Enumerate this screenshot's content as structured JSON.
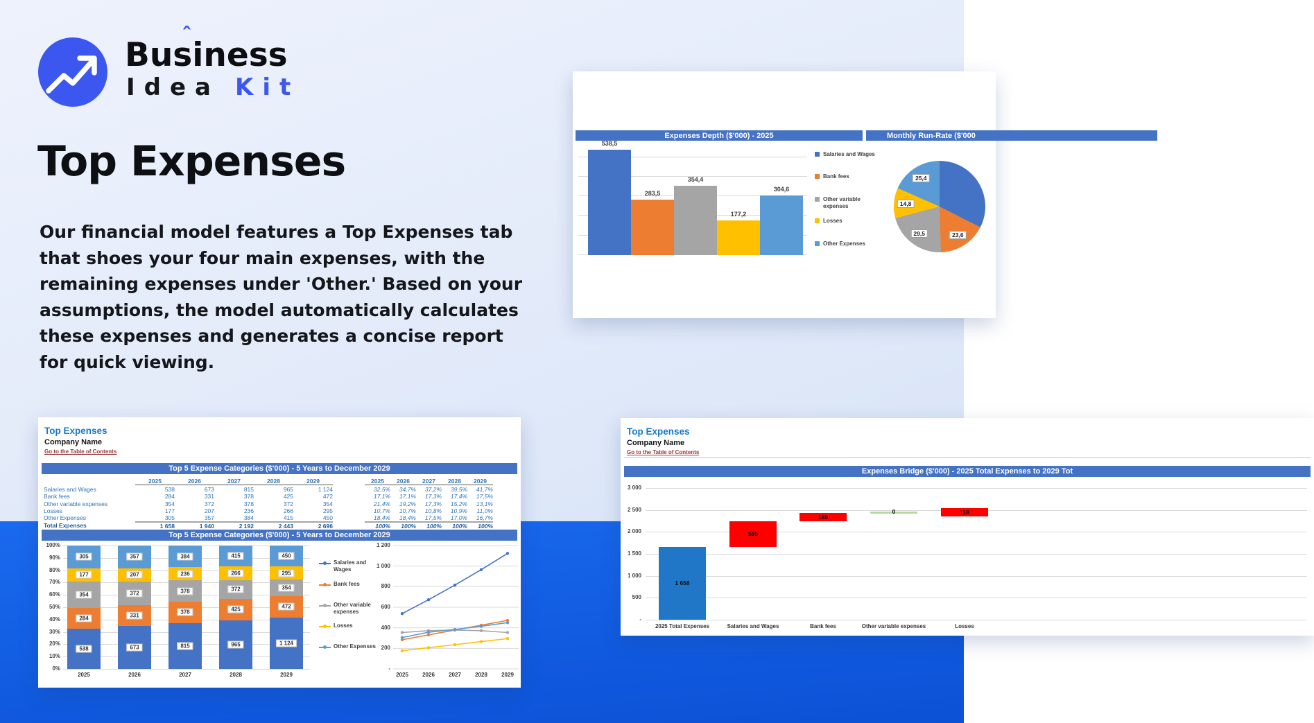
{
  "brand": {
    "word1": "Business",
    "accent": "ˆ",
    "word2": "Idea",
    "word3": "Kit"
  },
  "hero": {
    "title": "Top Expenses",
    "description": "Our financial model features a Top Expenses tab that shoes your four main expenses, with the remaining expenses under 'Other.' Based on your assumptions, the model automatically calculates these expenses and generates a concise report for quick viewing."
  },
  "panels": {
    "depth": {
      "header_left": "Expenses Depth ($'000) - 2025",
      "header_right": "Monthly Run-Rate ($'000"
    },
    "sheet1": {
      "title": "Top Expenses",
      "company": "Company Name",
      "toc_link": "Go to the Table of Contents",
      "table_title": "Top 5 Expense Categories ($'000) - 5 Years to December 2029",
      "chart_title": "Top 5 Expense Categories ($'000) - 5 Years to December 2029"
    },
    "sheet2": {
      "title": "Top Expenses",
      "company": "Company Name",
      "toc_link": "Go to the Table of Contents",
      "chart_title": "Expenses Bridge ($'000) - 2025 Total Expenses to 2029 Tot"
    }
  },
  "table": {
    "years": [
      "2025",
      "2026",
      "2027",
      "2028",
      "2029"
    ],
    "rows": [
      {
        "label": "Salaries and Wages",
        "values": [
          "538",
          "673",
          "815",
          "965",
          "1 124"
        ],
        "pcts": [
          "32,5%",
          "34,7%",
          "37,2%",
          "39,5%",
          "41,7%"
        ]
      },
      {
        "label": "Bank fees",
        "values": [
          "284",
          "331",
          "378",
          "425",
          "472"
        ],
        "pcts": [
          "17,1%",
          "17,1%",
          "17,3%",
          "17,4%",
          "17,5%"
        ]
      },
      {
        "label": "Other variable expenses",
        "values": [
          "354",
          "372",
          "378",
          "372",
          "354"
        ],
        "pcts": [
          "21,4%",
          "19,2%",
          "17,3%",
          "15,2%",
          "13,1%"
        ]
      },
      {
        "label": "Losses",
        "values": [
          "177",
          "207",
          "236",
          "266",
          "295"
        ],
        "pcts": [
          "10,7%",
          "10,7%",
          "10,8%",
          "10,9%",
          "11,0%"
        ]
      },
      {
        "label": "Other Expenses",
        "values": [
          "305",
          "357",
          "384",
          "415",
          "450"
        ],
        "pcts": [
          "18,4%",
          "18,4%",
          "17,5%",
          "17,0%",
          "16,7%"
        ]
      }
    ],
    "total": {
      "label": "Total Expenses",
      "values": [
        "1 658",
        "1 940",
        "2 192",
        "2 443",
        "2 696"
      ],
      "pcts": [
        "100%",
        "100%",
        "100%",
        "100%",
        "100%"
      ]
    }
  },
  "chart_data": [
    {
      "id": "depth",
      "type": "bar",
      "title": "Expenses Depth ($'000) - 2025",
      "categories": [
        "Salaries and Wages",
        "Bank fees",
        "Other variable expenses",
        "Losses",
        "Other Expenses"
      ],
      "values": [
        538.5,
        283.5,
        354.4,
        177.2,
        304.6
      ],
      "value_labels": [
        "538,5",
        "283,5",
        "354,4",
        "177,2",
        "304,6"
      ],
      "colors": [
        "#4472C4",
        "#ED7D31",
        "#A5A5A5",
        "#FFC000",
        "#5B9BD5"
      ],
      "ylim": [
        0,
        560
      ],
      "gridline_step": 100,
      "grid": true,
      "legend": [
        "Salaries and Wages",
        "Bank fees",
        "Other variable expenses",
        "Losses",
        "Other Expenses"
      ],
      "legend_position": "right"
    },
    {
      "id": "runrate",
      "type": "pie",
      "title": "Monthly Run-Rate ($'000",
      "slices": [
        {
          "name": "Salaries and Wages",
          "value": 44.8,
          "label": "",
          "color": "#4472C4"
        },
        {
          "name": "Bank fees",
          "value": 23.6,
          "label": "23,6",
          "color": "#ED7D31"
        },
        {
          "name": "Other variable expenses",
          "value": 29.5,
          "label": "29,5",
          "color": "#A5A5A5"
        },
        {
          "name": "Losses",
          "value": 14.8,
          "label": "14,8",
          "color": "#FFC000"
        },
        {
          "name": "Other Expenses",
          "value": 25.4,
          "label": "25,4",
          "color": "#5B9BD5"
        }
      ]
    },
    {
      "id": "stacked",
      "type": "stacked-bar",
      "title": "Top 5 Expense Categories ($'000) - 5 Years to December 2029",
      "categories": [
        "2025",
        "2026",
        "2027",
        "2028",
        "2029"
      ],
      "series": [
        {
          "name": "Salaries and Wages",
          "color": "#4472C4",
          "values": [
            538,
            673,
            815,
            965,
            1124
          ],
          "labels": [
            "538",
            "673",
            "815",
            "965",
            "1 124"
          ]
        },
        {
          "name": "Bank fees",
          "color": "#ED7D31",
          "values": [
            284,
            331,
            378,
            425,
            472
          ],
          "labels": [
            "284",
            "331",
            "378",
            "425",
            "472"
          ]
        },
        {
          "name": "Other variable expenses",
          "color": "#A5A5A5",
          "values": [
            354,
            372,
            378,
            372,
            354
          ],
          "labels": [
            "354",
            "372",
            "378",
            "372",
            "354"
          ]
        },
        {
          "name": "Losses",
          "color": "#FFC000",
          "values": [
            177,
            207,
            236,
            266,
            295
          ],
          "labels": [
            "177",
            "207",
            "236",
            "266",
            "295"
          ]
        },
        {
          "name": "Other Expenses",
          "color": "#5B9BD5",
          "values": [
            305,
            357,
            384,
            415,
            450
          ],
          "labels": [
            "305",
            "357",
            "384",
            "415",
            "450"
          ]
        }
      ],
      "totals": [
        1658,
        1940,
        2192,
        2443,
        2696
      ],
      "yticks": [
        "100%",
        "90%",
        "80%",
        "70%",
        "60%",
        "50%",
        "40%",
        "30%",
        "20%",
        "10%",
        "0%"
      ],
      "legend_position": "right"
    },
    {
      "id": "trend",
      "type": "line",
      "categories": [
        "2025",
        "2026",
        "2027",
        "2028",
        "2029"
      ],
      "series": [
        {
          "name": "Salaries and Wages",
          "color": "#4472C4",
          "values": [
            538,
            673,
            815,
            965,
            1124
          ]
        },
        {
          "name": "Bank fees",
          "color": "#ED7D31",
          "values": [
            284,
            331,
            378,
            425,
            472
          ]
        },
        {
          "name": "Other variable expenses",
          "color": "#A5A5A5",
          "values": [
            354,
            372,
            378,
            372,
            354
          ]
        },
        {
          "name": "Losses",
          "color": "#FFC000",
          "values": [
            177,
            207,
            236,
            266,
            295
          ]
        },
        {
          "name": "Other Expenses",
          "color": "#5B9BD5",
          "values": [
            305,
            357,
            384,
            415,
            450
          ]
        }
      ],
      "yticks": [
        "1 200",
        "1 000",
        "800",
        "600",
        "400",
        "200",
        "-"
      ],
      "ylim": [
        0,
        1200
      ],
      "grid": true
    },
    {
      "id": "bridge",
      "type": "waterfall",
      "title": "Expenses Bridge ($'000) - 2025 Total Expenses to 2029 Tot",
      "categories": [
        "2025 Total Expenses",
        "Salaries and Wages",
        "Bank fees",
        "Other variable expenses",
        "Losses"
      ],
      "steps": [
        {
          "label": "1 658",
          "start": 0,
          "end": 1658,
          "style": "total"
        },
        {
          "label": "585",
          "start": 1658,
          "end": 2243,
          "style": "increase"
        },
        {
          "label": "189",
          "start": 2243,
          "end": 2432,
          "style": "increase"
        },
        {
          "label": "0",
          "start": 2432,
          "end": 2432,
          "style": "zero"
        },
        {
          "label": "118",
          "start": 2432,
          "end": 2550,
          "style": "increase"
        }
      ],
      "yticks": [
        "3 000",
        "2 500",
        "2 000",
        "1 500",
        "1 000",
        "500",
        "-"
      ],
      "ylim": [
        0,
        3000
      ],
      "grid": true,
      "colors": {
        "total": "#2077C8",
        "increase": "#FF0000",
        "zero": "#B5D9A0"
      }
    }
  ],
  "colors": {
    "accent": "#3B57F0",
    "excel_header": "#4472C4",
    "link": "#953735",
    "sheet_title": "#1878C8",
    "table_text": "#2E75B6",
    "band": "#1060E2"
  }
}
